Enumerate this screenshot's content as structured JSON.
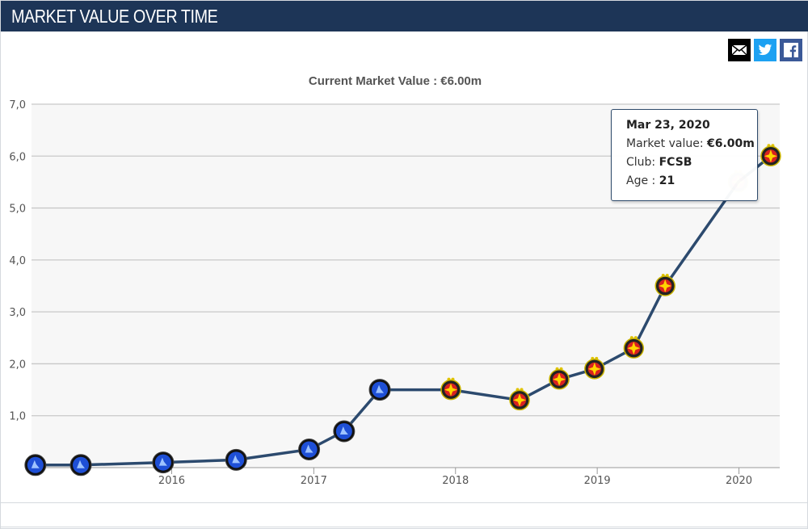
{
  "header": {
    "title": "MARKET VALUE OVER TIME"
  },
  "share": {
    "mail_icon": "mail-icon",
    "twitter_icon": "twitter-icon",
    "facebook_icon": "facebook-icon"
  },
  "colors": {
    "header_bg": "#1d3557",
    "line": "#2c4a6e",
    "plot_bg": "#f7f7f7",
    "grid": "#c8c8c8"
  },
  "chart_data": {
    "type": "line",
    "title": "Current Market Value : €6.00m",
    "xlabel": "",
    "ylabel": "",
    "ylim": [
      0,
      7
    ],
    "xlim": [
      "2015-01-05",
      "2020-04-15"
    ],
    "y_ticks": [
      "0",
      "1,0",
      "2,0",
      "3,0",
      "4,0",
      "5,0",
      "6,0",
      "7,0"
    ],
    "x_ticks": [
      {
        "date": "2016-01-01",
        "label": "2016"
      },
      {
        "date": "2017-01-01",
        "label": "2017"
      },
      {
        "date": "2018-01-01",
        "label": "2018"
      },
      {
        "date": "2019-01-01",
        "label": "2019"
      },
      {
        "date": "2020-01-01",
        "label": "2020"
      }
    ],
    "grid": true,
    "series": [
      {
        "points": [
          {
            "date": "2015-01-15",
            "value": 0.05,
            "club": "blue"
          },
          {
            "date": "2015-05-12",
            "value": 0.05,
            "club": "blue"
          },
          {
            "date": "2015-12-10",
            "value": 0.1,
            "club": "blue"
          },
          {
            "date": "2016-06-15",
            "value": 0.15,
            "club": "blue"
          },
          {
            "date": "2016-12-20",
            "value": 0.35,
            "club": "blue"
          },
          {
            "date": "2017-03-20",
            "value": 0.7,
            "club": "blue"
          },
          {
            "date": "2017-06-20",
            "value": 1.5,
            "club": "blue"
          },
          {
            "date": "2017-12-20",
            "value": 1.5,
            "club": "FCSB"
          },
          {
            "date": "2018-06-15",
            "value": 1.3,
            "club": "FCSB"
          },
          {
            "date": "2018-09-25",
            "value": 1.7,
            "club": "FCSB"
          },
          {
            "date": "2018-12-25",
            "value": 1.9,
            "club": "FCSB"
          },
          {
            "date": "2019-04-05",
            "value": 2.3,
            "club": "FCSB"
          },
          {
            "date": "2019-06-25",
            "value": 3.5,
            "club": "FCSB"
          },
          {
            "date": "2019-12-30",
            "value": 5.5,
            "club": "FCSB"
          },
          {
            "date": "2020-03-23",
            "value": 6.0,
            "club": "FCSB"
          }
        ]
      }
    ],
    "tooltip": {
      "date": "Mar 23, 2020",
      "market_value_label": "Market value:",
      "market_value": "€6.00m",
      "club_label": "Club:",
      "club": "FCSB",
      "age_label": "Age :",
      "age": "21"
    }
  }
}
